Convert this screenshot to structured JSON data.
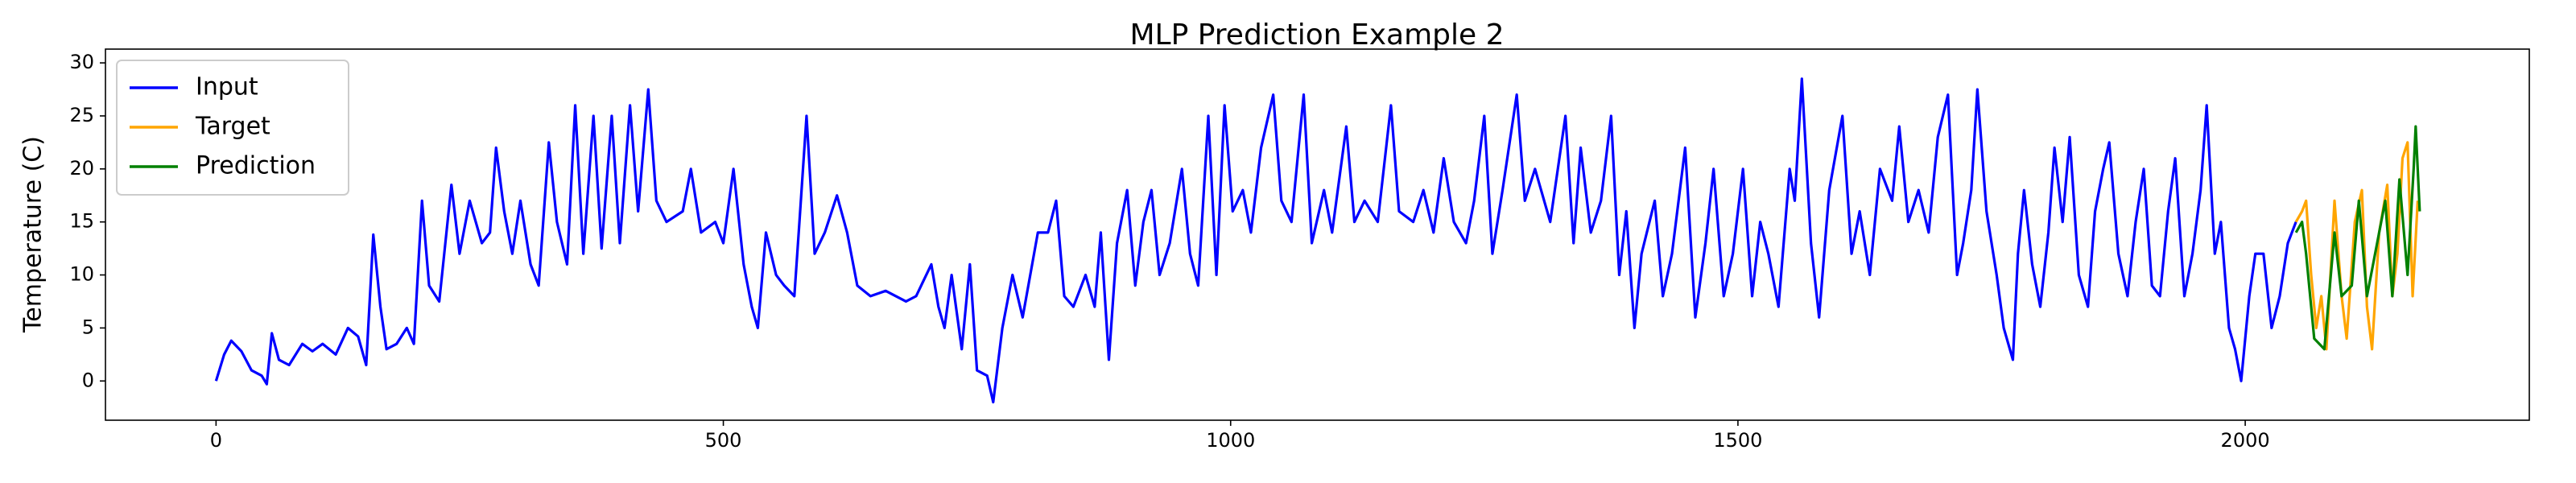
{
  "chart_data": {
    "type": "line",
    "title": "MLP Prediction Example 2",
    "y_label": "Temperature (C)",
    "xlim": [
      -109,
      2280
    ],
    "ylim": [
      -3.7,
      31.3
    ],
    "xticks": [
      0,
      500,
      1000,
      1500,
      2000
    ],
    "yticks": [
      0,
      5,
      10,
      15,
      20,
      25,
      30
    ],
    "legend": "upper left",
    "series": [
      {
        "name": "Input",
        "color": "#0000ff",
        "x": [
          0,
          8,
          15,
          25,
          35,
          45,
          50,
          55,
          62,
          72,
          85,
          95,
          105,
          118,
          130,
          140,
          148,
          155,
          162,
          168,
          178,
          188,
          195,
          203,
          210,
          220,
          232,
          240,
          250,
          262,
          270,
          276,
          284,
          292,
          300,
          310,
          318,
          328,
          336,
          346,
          354,
          362,
          372,
          380,
          390,
          398,
          408,
          416,
          426,
          434,
          444,
          460,
          468,
          478,
          492,
          500,
          510,
          520,
          528,
          534,
          542,
          552,
          560,
          570,
          575,
          582,
          590,
          600,
          612,
          622,
          632,
          645,
          660,
          680,
          690,
          705,
          712,
          718,
          725,
          735,
          743,
          750,
          760,
          766,
          775,
          785,
          795,
          810,
          820,
          828,
          836,
          845,
          857,
          866,
          872,
          880,
          888,
          898,
          906,
          914,
          922,
          930,
          940,
          952,
          960,
          968,
          978,
          986,
          994,
          1002,
          1012,
          1020,
          1030,
          1042,
          1050,
          1060,
          1072,
          1080,
          1092,
          1100,
          1114,
          1122,
          1132,
          1145,
          1158,
          1166,
          1180,
          1190,
          1200,
          1210,
          1220,
          1232,
          1240,
          1250,
          1258,
          1268,
          1282,
          1290,
          1300,
          1315,
          1330,
          1338,
          1345,
          1355,
          1365,
          1375,
          1383,
          1390,
          1398,
          1405,
          1418,
          1426,
          1435,
          1448,
          1458,
          1468,
          1476,
          1486,
          1495,
          1505,
          1514,
          1522,
          1530,
          1540,
          1551,
          1556,
          1563,
          1572,
          1580,
          1590,
          1603,
          1612,
          1620,
          1630,
          1640,
          1652,
          1659,
          1668,
          1678,
          1688,
          1697,
          1707,
          1716,
          1722,
          1730,
          1736,
          1745,
          1755,
          1762,
          1771,
          1776,
          1782,
          1790,
          1798,
          1806,
          1812,
          1820,
          1827,
          1836,
          1845,
          1852,
          1860,
          1866,
          1875,
          1884,
          1892,
          1900,
          1908,
          1916,
          1924,
          1931,
          1940,
          1948,
          1956,
          1962,
          1970,
          1976,
          1984,
          1990,
          1996,
          2004,
          2010,
          2018,
          2026,
          2034,
          2042,
          2050
        ],
        "values": [
          0,
          2.5,
          3.8,
          2.8,
          1,
          0.5,
          -0.3,
          4.5,
          2,
          1.5,
          3.5,
          2.8,
          3.5,
          2.5,
          5,
          4.2,
          1.5,
          13.8,
          7,
          3,
          3.5,
          5,
          3.5,
          17,
          9,
          7.5,
          18.5,
          12,
          17,
          13,
          14,
          22,
          16,
          12,
          17,
          11,
          9,
          22.5,
          15,
          11,
          26,
          12,
          25,
          12.5,
          25,
          13,
          26,
          16,
          27.5,
          17,
          15,
          16,
          20,
          14,
          15,
          13,
          20,
          11,
          7,
          5,
          14,
          10,
          9,
          8,
          15,
          25,
          12,
          14,
          17.5,
          14,
          9,
          8,
          8.5,
          7.5,
          8,
          11,
          7,
          5,
          10,
          3,
          11,
          1,
          0.5,
          -2,
          5,
          10,
          6,
          14,
          14,
          17,
          8,
          7,
          10,
          7,
          14,
          2,
          13,
          18,
          9,
          15,
          18,
          10,
          13,
          20,
          12,
          9,
          25,
          10,
          26,
          16,
          18,
          14,
          22,
          27,
          17,
          15,
          27,
          13,
          18,
          14,
          24,
          15,
          17,
          15,
          26,
          16,
          15,
          18,
          14,
          21,
          15,
          13,
          17,
          25,
          12,
          18,
          27,
          17,
          20,
          15,
          25,
          13,
          22,
          14,
          17,
          25,
          10,
          16,
          5,
          12,
          17,
          8,
          12,
          22,
          6,
          13,
          20,
          8,
          12,
          20,
          8,
          15,
          12,
          7,
          20,
          17,
          28.5,
          13,
          6,
          18,
          25,
          12,
          16,
          10,
          20,
          17,
          24,
          15,
          18,
          14,
          23,
          27,
          10,
          13,
          18,
          27.5,
          16,
          10,
          5,
          2,
          12,
          18,
          11,
          7,
          14,
          22,
          15,
          23,
          10,
          7,
          16,
          20,
          22.5,
          12,
          8,
          15,
          20,
          9,
          8,
          16,
          21,
          8,
          12,
          18,
          26,
          12,
          15,
          5,
          3,
          0,
          8,
          12,
          12,
          5,
          8,
          13,
          15
        ]
      },
      {
        "name": "Target",
        "color": "#ffa500",
        "x": [
          2050,
          2056,
          2060,
          2065,
          2070,
          2075,
          2080,
          2088,
          2095,
          2100,
          2108,
          2115,
          2120,
          2125,
          2132,
          2140,
          2145,
          2150,
          2155,
          2160,
          2165,
          2170
        ],
        "values": [
          15,
          16,
          17,
          10,
          5,
          8,
          3,
          17,
          8,
          4,
          15,
          18,
          7,
          3,
          14,
          18.5,
          8,
          12,
          21,
          22.5,
          8,
          17
        ]
      },
      {
        "name": "Prediction",
        "color": "#008000",
        "x": [
          2050,
          2056,
          2060,
          2068,
          2078,
          2088,
          2095,
          2105,
          2112,
          2120,
          2130,
          2138,
          2145,
          2152,
          2160,
          2166,
          2168,
          2172
        ],
        "values": [
          14,
          15,
          12,
          4,
          3,
          14,
          8,
          9,
          17,
          8,
          13,
          17,
          8,
          19,
          10,
          20,
          24,
          16
        ]
      }
    ]
  }
}
